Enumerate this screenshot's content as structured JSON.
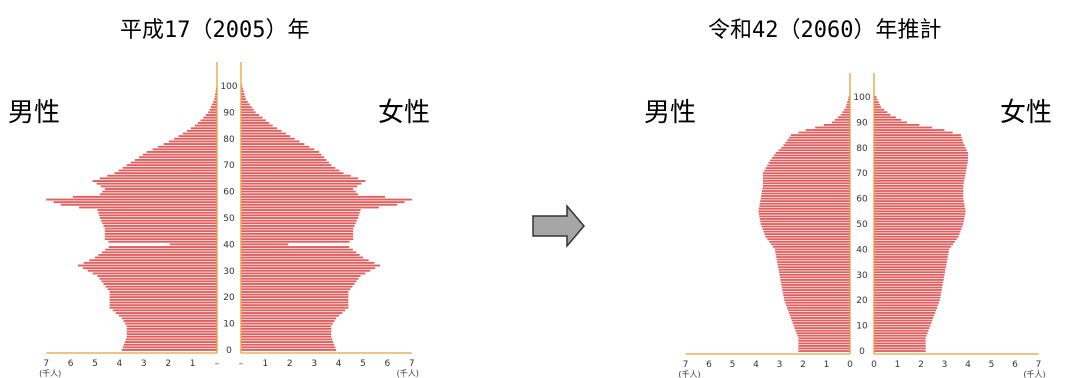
{
  "panels": [
    {
      "title": "平成17（2005）年",
      "male_label": "男性",
      "female_label": "女性"
    },
    {
      "title": "令和42（2060）年推計",
      "male_label": "男性",
      "female_label": "女性"
    }
  ],
  "arrow_icon": "right-arrow-icon",
  "chart_data": [
    {
      "type": "population-pyramid",
      "title": "平成17（2005）年",
      "x_unit": "(千人)",
      "x_ticks": [
        "7",
        "6",
        "5",
        "4",
        "3",
        "2",
        "1",
        "–",
        "–",
        "1",
        "2",
        "3",
        "4",
        "5",
        "6",
        "7"
      ],
      "age_ticks": [
        "0",
        "10",
        "20",
        "30",
        "40",
        "50",
        "60",
        "70",
        "80",
        "90",
        "100"
      ],
      "xlim": [
        0,
        7
      ],
      "bar_color": "#e06060",
      "age_profile": [
        [
          0,
          3.9
        ],
        [
          5,
          3.7
        ],
        [
          9,
          3.7
        ],
        [
          12,
          3.9
        ],
        [
          16,
          4.4
        ],
        [
          22,
          4.4
        ],
        [
          28,
          4.9
        ],
        [
          32,
          5.7
        ],
        [
          35,
          5.0
        ],
        [
          40,
          4.3
        ],
        [
          42,
          4.6
        ],
        [
          46,
          4.6
        ],
        [
          50,
          4.8
        ],
        [
          53,
          4.9
        ],
        [
          55,
          6.4
        ],
        [
          57,
          7.0
        ],
        [
          59,
          4.8
        ],
        [
          61,
          4.6
        ],
        [
          64,
          5.1
        ],
        [
          67,
          4.2
        ],
        [
          70,
          3.7
        ],
        [
          75,
          3.2
        ],
        [
          80,
          2.2
        ],
        [
          85,
          1.3
        ],
        [
          90,
          0.6
        ],
        [
          95,
          0.2
        ],
        [
          100,
          0.05
        ]
      ],
      "male_factor": [
        [
          0,
          1.0
        ],
        [
          70,
          1.0
        ],
        [
          80,
          0.8
        ],
        [
          90,
          0.6
        ],
        [
          100,
          0.5
        ]
      ],
      "dips": [
        {
          "age": 40,
          "factor": 0.45
        }
      ]
    },
    {
      "type": "population-pyramid",
      "title": "令和42（2060）年推計",
      "x_unit": "(千人)",
      "x_ticks": [
        "7",
        "6",
        "5",
        "4",
        "3",
        "2",
        "1",
        "0",
        "0",
        "1",
        "2",
        "3",
        "4",
        "5",
        "6",
        "7"
      ],
      "age_ticks": [
        "0",
        "10",
        "20",
        "30",
        "40",
        "50",
        "60",
        "70",
        "80",
        "90",
        "100"
      ],
      "xlim": [
        0,
        7
      ],
      "bar_color": "#e06060",
      "age_profile": [
        [
          0,
          2.2
        ],
        [
          5,
          2.2
        ],
        [
          10,
          2.4
        ],
        [
          15,
          2.6
        ],
        [
          20,
          2.8
        ],
        [
          25,
          2.9
        ],
        [
          30,
          3.0
        ],
        [
          35,
          3.1
        ],
        [
          40,
          3.2
        ],
        [
          45,
          3.6
        ],
        [
          50,
          3.8
        ],
        [
          55,
          3.9
        ],
        [
          60,
          3.8
        ],
        [
          65,
          3.8
        ],
        [
          70,
          3.9
        ],
        [
          75,
          4.0
        ],
        [
          78,
          4.0
        ],
        [
          80,
          3.9
        ],
        [
          82,
          3.8
        ],
        [
          85,
          3.7
        ],
        [
          87,
          3.0
        ],
        [
          90,
          1.4
        ],
        [
          93,
          0.7
        ],
        [
          96,
          0.3
        ],
        [
          100,
          0.1
        ]
      ],
      "male_factor": [
        [
          0,
          1.0
        ],
        [
          60,
          1.0
        ],
        [
          70,
          0.95
        ],
        [
          80,
          0.75
        ],
        [
          85,
          0.68
        ],
        [
          90,
          0.55
        ],
        [
          100,
          0.6
        ]
      ],
      "dips": []
    }
  ]
}
